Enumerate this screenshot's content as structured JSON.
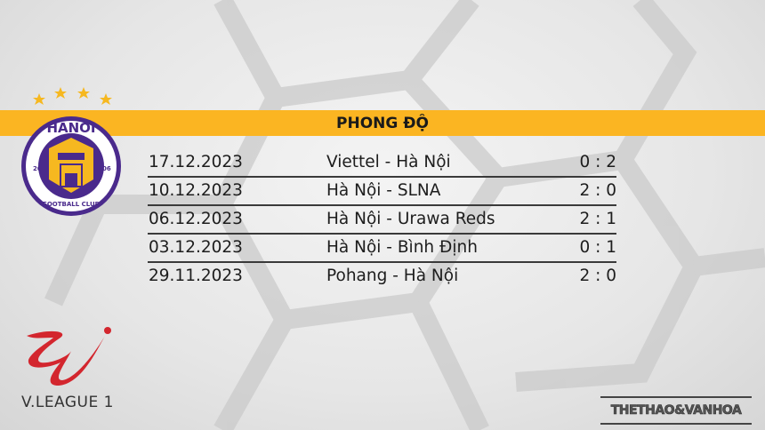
{
  "header": {
    "title": "PHONG ĐỘ"
  },
  "club_logo": {
    "text_top": "HANOI",
    "year_left": "20",
    "year_right": "06",
    "text_bottom": "FOOTBALL CLUB"
  },
  "league_logo": {
    "text": "V.LEAGUE 1"
  },
  "brand": {
    "text": "THETHAO&VANHOA"
  },
  "colors": {
    "banner": "#fbb522",
    "club_purple": "#4a2a8c",
    "club_gold": "#f6b820",
    "league_red": "#d3262e"
  },
  "matches": [
    {
      "date": "17.12.2023",
      "match": "Viettel - Hà Nội",
      "score": "0 : 2"
    },
    {
      "date": "10.12.2023",
      "match": "Hà Nội - SLNA",
      "score": "2 : 0"
    },
    {
      "date": "06.12.2023",
      "match": "Hà Nội - Urawa Reds",
      "score": "2 : 1"
    },
    {
      "date": "03.12.2023",
      "match": "Hà Nội - Bình Định",
      "score": "0 : 1"
    },
    {
      "date": "29.11.2023",
      "match": "Pohang - Hà Nội",
      "score": "2 : 0"
    }
  ]
}
